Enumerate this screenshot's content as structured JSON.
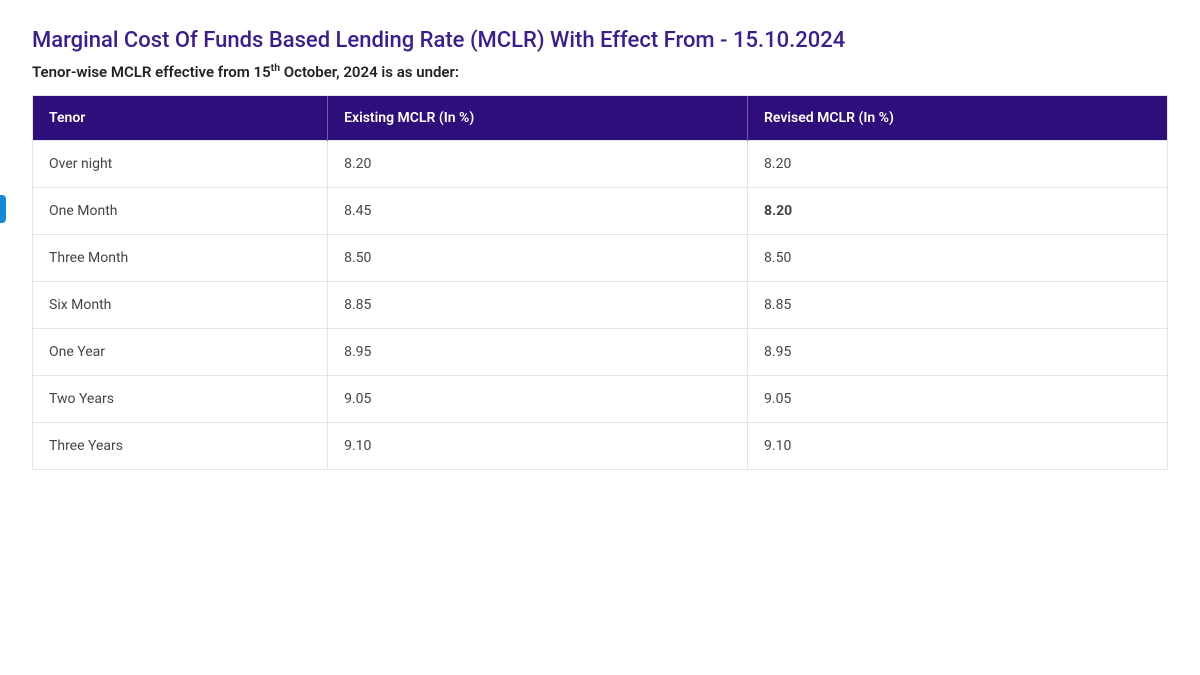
{
  "title_color": "#3b1d8f",
  "header_bg": "#2e0e7a",
  "border_color": "#e3e3e3",
  "title": "Marginal Cost Of Funds Based Lending Rate (MCLR) With Effect From - 15.10.2024",
  "subtitle_prefix": "Tenor-wise MCLR effective from 15",
  "subtitle_sup": "th",
  "subtitle_suffix": " October, 2024 is as under:",
  "columns": {
    "tenor": "Tenor",
    "existing": "Existing MCLR (In %)",
    "revised": "Revised MCLR (In %)"
  },
  "rows": [
    {
      "tenor": "Over night",
      "existing": "8.20",
      "revised": "8.20",
      "revised_bold": false
    },
    {
      "tenor": "One Month",
      "existing": "8.45",
      "revised": "8.20",
      "revised_bold": true
    },
    {
      "tenor": "Three Month",
      "existing": "8.50",
      "revised": "8.50",
      "revised_bold": false
    },
    {
      "tenor": "Six Month",
      "existing": "8.85",
      "revised": "8.85",
      "revised_bold": false
    },
    {
      "tenor": "One Year",
      "existing": "8.95",
      "revised": "8.95",
      "revised_bold": false
    },
    {
      "tenor": "Two Years",
      "existing": "9.05",
      "revised": "9.05",
      "revised_bold": false
    },
    {
      "tenor": "Three Years",
      "existing": "9.10",
      "revised": "9.10",
      "revised_bold": false
    }
  ]
}
